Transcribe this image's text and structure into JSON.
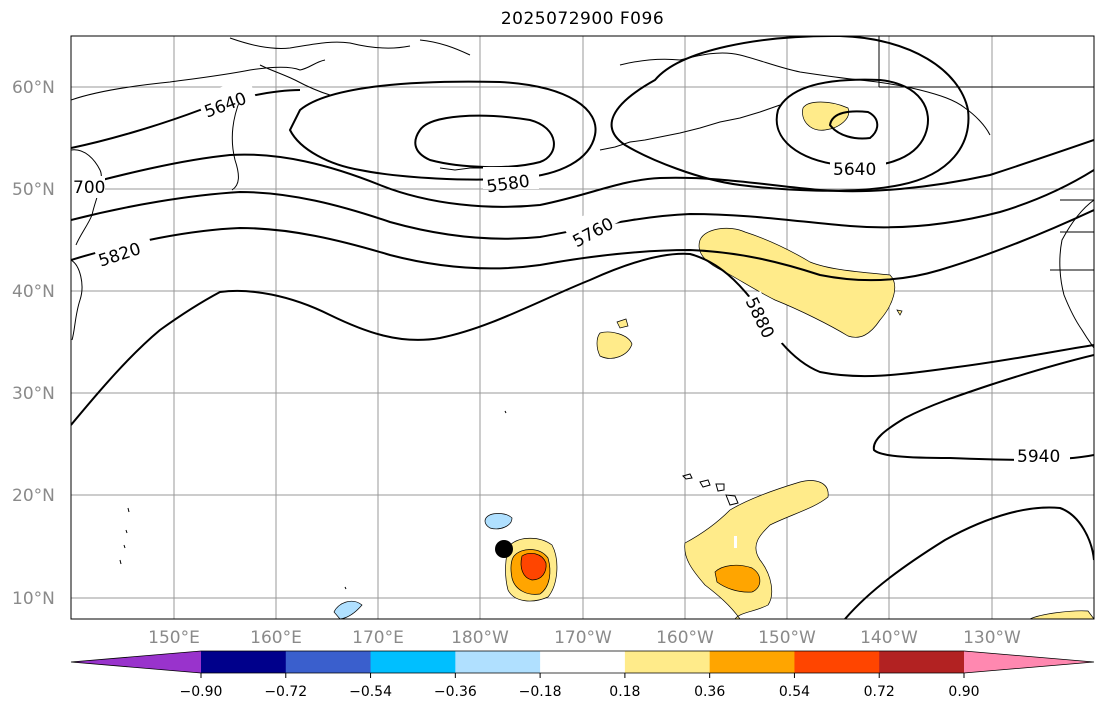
{
  "title": "2025072900 F096",
  "map": {
    "lat_labels": [
      "60°N",
      "50°N",
      "40°N",
      "30°N",
      "20°N",
      "10°N"
    ],
    "lon_labels": [
      "150°E",
      "160°E",
      "170°E",
      "180°W",
      "170°W",
      "160°W",
      "150°W",
      "140°W",
      "130°W"
    ],
    "contour_labels": [
      "5640",
      "5580",
      "5640",
      "5760",
      "5820",
      "5880",
      "5940",
      "700"
    ],
    "grid": true
  },
  "colorbar": {
    "ticks": [
      "−0.90",
      "−0.72",
      "−0.54",
      "−0.36",
      "−0.18",
      "0.18",
      "0.36",
      "0.54",
      "0.72",
      "0.90"
    ],
    "colors": [
      "#9933cc",
      "#00008b",
      "#3a5fcd",
      "#00bfff",
      "#b0e0ff",
      "#ffffff",
      "#ffeb8a",
      "#ffa500",
      "#ff4500",
      "#b22222",
      "#ff88b0"
    ]
  }
}
